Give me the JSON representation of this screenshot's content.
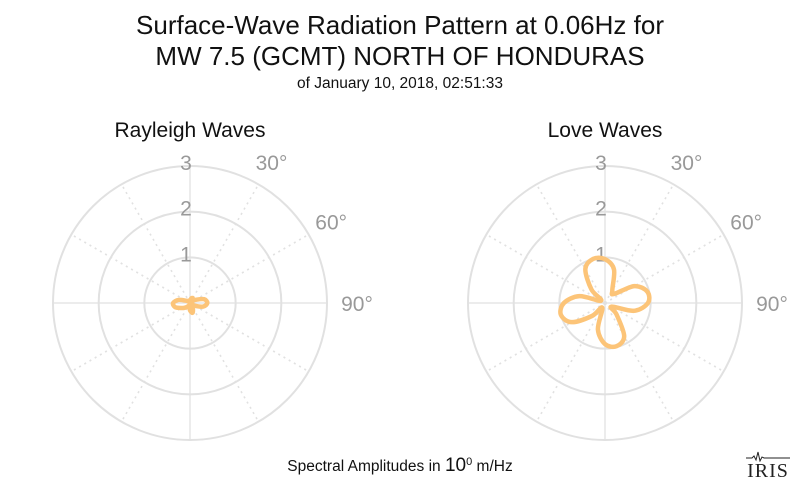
{
  "title_line1": "Surface-Wave Radiation Pattern at 0.06Hz for",
  "title_line2": "MW 7.5 (GCMT) NORTH OF HONDURAS",
  "subtitle": "of January 10, 2018, 02:51:33",
  "footer": {
    "prefix": "Spectral Amplitudes in ",
    "base": "10",
    "exponent": "0",
    "unit": " m/Hz"
  },
  "logo_text": "IRIS",
  "colors": {
    "pattern": "#fcc478",
    "grid": "#e1e1e1",
    "label": "#999999"
  },
  "chart_data": [
    {
      "type": "polar-line",
      "title": "Rayleigh Waves",
      "radial_ticks": [
        1,
        2,
        3
      ],
      "radial_max": 3,
      "angle_labels": [
        "30°",
        "60°",
        "90°"
      ],
      "theta_deg": [
        0,
        15,
        30,
        45,
        60,
        75,
        90,
        105,
        120,
        135,
        150,
        165,
        180,
        195,
        210,
        225,
        240,
        255,
        270,
        285,
        300,
        315,
        330,
        345
      ],
      "r": [
        0.02,
        0.1,
        0.12,
        0.06,
        0.14,
        0.32,
        0.38,
        0.3,
        0.12,
        0.02,
        0.12,
        0.22,
        0.16,
        0.06,
        0.08,
        0.14,
        0.22,
        0.34,
        0.37,
        0.26,
        0.1,
        0.04,
        0.06,
        0.04
      ]
    },
    {
      "type": "polar-line",
      "title": "Love Waves",
      "radial_ticks": [
        1,
        2,
        3
      ],
      "radial_max": 3,
      "angle_labels": [
        "30°",
        "60°",
        "90°"
      ],
      "theta_deg": [
        0,
        15,
        30,
        45,
        60,
        75,
        90,
        105,
        120,
        135,
        150,
        165,
        180,
        195,
        210,
        225,
        240,
        255,
        270,
        285,
        300,
        315,
        330,
        345
      ],
      "r": [
        0.96,
        0.76,
        0.32,
        0.28,
        0.74,
        0.96,
        0.94,
        0.66,
        0.16,
        0.36,
        0.84,
        0.98,
        0.9,
        0.6,
        0.12,
        0.4,
        0.84,
        1.0,
        0.9,
        0.58,
        0.1,
        0.42,
        0.86,
        1.0
      ]
    }
  ]
}
